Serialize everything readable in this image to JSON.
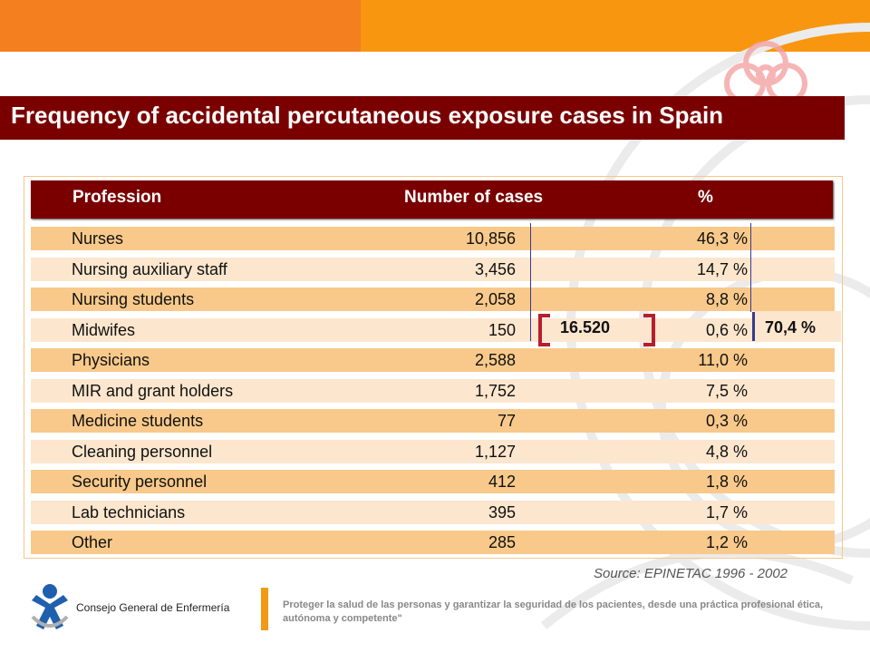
{
  "title": "Frequency of accidental percutaneous exposure cases in Spain",
  "colors": {
    "accent_dark_red": "#7a0000",
    "orange": "#f47f1f",
    "row_dark": "#f8c98a",
    "row_light": "#fce6cd"
  },
  "table": {
    "headers": {
      "profession": "Profession",
      "cases": "Number of cases",
      "percent": "%"
    },
    "rows": [
      {
        "profession": "Nurses",
        "cases": "10,856",
        "percent": "46,3 %"
      },
      {
        "profession": "Nursing auxiliary staff",
        "cases": "3,456",
        "percent": "14,7 %"
      },
      {
        "profession": "Nursing students",
        "cases": "2,058",
        "percent": "8,8 %"
      },
      {
        "profession": "Midwifes",
        "cases": "150",
        "percent": "0,6 %"
      },
      {
        "profession": "Physicians",
        "cases": "2,588",
        "percent": "11,0 %"
      },
      {
        "profession": "MIR and grant holders",
        "cases": "1,752",
        "percent": "7,5 %"
      },
      {
        "profession": "Medicine students",
        "cases": "77",
        "percent": "0,3 %"
      },
      {
        "profession": "Cleaning personnel",
        "cases": "1,127",
        "percent": "4,8 %"
      },
      {
        "profession": "Security personnel",
        "cases": "412",
        "percent": "1,8 %"
      },
      {
        "profession": "Lab technicians",
        "cases": "395",
        "percent": "1,7 %"
      },
      {
        "profession": "Other",
        "cases": "285",
        "percent": "1,2 %"
      }
    ],
    "nursing_total_cases": "16.520",
    "nursing_total_percent": "70,4 %"
  },
  "source": "Source: EPINETAC 1996 - 2002",
  "footer": {
    "org_name": "Consejo General de Enfermería",
    "motto": "Proteger la salud de las personas y garantizar la seguridad de los pacientes, desde una práctica profesional ética, autónoma y competente\""
  }
}
